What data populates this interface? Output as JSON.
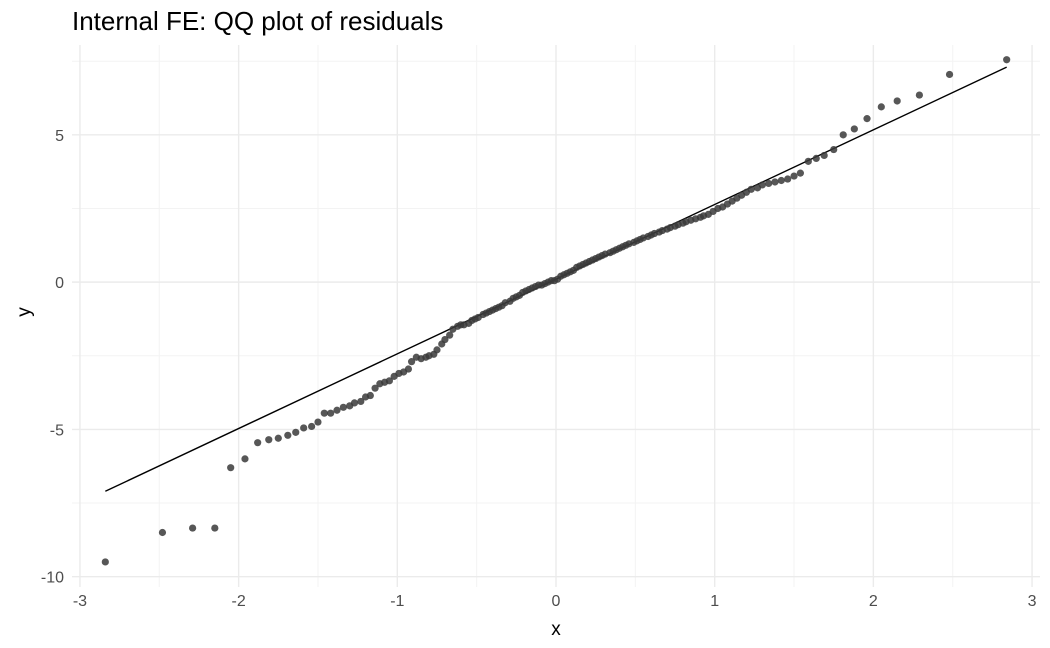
{
  "chart_data": {
    "type": "scatter",
    "title": "Internal FE: QQ plot of residuals",
    "xlabel": "x",
    "ylabel": "y",
    "xlim": [
      -3.05,
      3.05
    ],
    "ylim": [
      -10.35,
      8.05
    ],
    "xticks": [
      -3,
      -2,
      -1,
      0,
      1,
      2,
      3
    ],
    "xtick_labels": [
      "-3",
      "-2",
      "-1",
      "0",
      "1",
      "2",
      "3"
    ],
    "yticks": [
      -10,
      -5,
      0,
      5
    ],
    "ytick_labels": [
      "-10",
      "-5",
      "0",
      "5"
    ],
    "grid": true,
    "legend": "none",
    "colors": {
      "point": "#3a3a3a",
      "line": "#000000",
      "grid_major": "#ebebeb",
      "grid_minor": "#f3f3f3"
    },
    "reference_line": {
      "x": [
        -2.84,
        2.84
      ],
      "y": [
        -7.1,
        7.3
      ]
    },
    "series": [
      {
        "points": [
          [
            -2.84,
            -9.5
          ],
          [
            -2.48,
            -8.5
          ],
          [
            -2.29,
            -8.35
          ],
          [
            -2.15,
            -8.35
          ],
          [
            -2.05,
            -6.3
          ],
          [
            -1.96,
            -6.0
          ],
          [
            -1.88,
            -5.45
          ],
          [
            -1.81,
            -5.35
          ],
          [
            -1.75,
            -5.3
          ],
          [
            -1.69,
            -5.2
          ],
          [
            -1.64,
            -5.1
          ],
          [
            -1.59,
            -4.95
          ],
          [
            -1.54,
            -4.9
          ],
          [
            -1.5,
            -4.75
          ],
          [
            -1.46,
            -4.45
          ],
          [
            -1.42,
            -4.45
          ],
          [
            -1.38,
            -4.35
          ],
          [
            -1.34,
            -4.25
          ],
          [
            -1.3,
            -4.2
          ],
          [
            -1.27,
            -4.1
          ],
          [
            -1.23,
            -4.05
          ],
          [
            -1.2,
            -3.9
          ],
          [
            -1.17,
            -3.85
          ],
          [
            -1.14,
            -3.6
          ],
          [
            -1.11,
            -3.45
          ],
          [
            -1.08,
            -3.4
          ],
          [
            -1.05,
            -3.35
          ],
          [
            -1.02,
            -3.2
          ],
          [
            -0.99,
            -3.1
          ],
          [
            -0.96,
            -3.05
          ],
          [
            -0.93,
            -2.95
          ],
          [
            -0.91,
            -2.7
          ],
          [
            -0.88,
            -2.55
          ],
          [
            -0.85,
            -2.6
          ],
          [
            -0.82,
            -2.55
          ],
          [
            -0.8,
            -2.5
          ],
          [
            -0.77,
            -2.45
          ],
          [
            -0.75,
            -2.3
          ],
          [
            -0.72,
            -2.1
          ],
          [
            -0.7,
            -1.95
          ],
          [
            -0.67,
            -1.8
          ],
          [
            -0.65,
            -1.6
          ],
          [
            -0.62,
            -1.5
          ],
          [
            -0.6,
            -1.45
          ],
          [
            -0.58,
            -1.45
          ],
          [
            -0.55,
            -1.4
          ],
          [
            -0.53,
            -1.3
          ],
          [
            -0.51,
            -1.25
          ],
          [
            -0.49,
            -1.2
          ],
          [
            -0.46,
            -1.1
          ],
          [
            -0.44,
            -1.05
          ],
          [
            -0.42,
            -1.0
          ],
          [
            -0.4,
            -0.95
          ],
          [
            -0.38,
            -0.9
          ],
          [
            -0.36,
            -0.85
          ],
          [
            -0.34,
            -0.8
          ],
          [
            -0.32,
            -0.7
          ],
          [
            -0.29,
            -0.65
          ],
          [
            -0.27,
            -0.55
          ],
          [
            -0.25,
            -0.5
          ],
          [
            -0.23,
            -0.45
          ],
          [
            -0.21,
            -0.35
          ],
          [
            -0.19,
            -0.3
          ],
          [
            -0.17,
            -0.25
          ],
          [
            -0.15,
            -0.2
          ],
          [
            -0.13,
            -0.15
          ],
          [
            -0.11,
            -0.1
          ],
          [
            -0.09,
            -0.1
          ],
          [
            -0.07,
            -0.05
          ],
          [
            -0.05,
            0.0
          ],
          [
            -0.03,
            0.05
          ],
          [
            -0.01,
            0.05
          ],
          [
            0.01,
            0.1
          ],
          [
            0.03,
            0.2
          ],
          [
            0.05,
            0.25
          ],
          [
            0.07,
            0.3
          ],
          [
            0.09,
            0.35
          ],
          [
            0.11,
            0.4
          ],
          [
            0.13,
            0.5
          ],
          [
            0.15,
            0.55
          ],
          [
            0.17,
            0.6
          ],
          [
            0.19,
            0.65
          ],
          [
            0.21,
            0.7
          ],
          [
            0.23,
            0.75
          ],
          [
            0.25,
            0.8
          ],
          [
            0.27,
            0.85
          ],
          [
            0.29,
            0.9
          ],
          [
            0.31,
            0.95
          ],
          [
            0.34,
            1.0
          ],
          [
            0.36,
            1.05
          ],
          [
            0.38,
            1.1
          ],
          [
            0.4,
            1.15
          ],
          [
            0.42,
            1.2
          ],
          [
            0.44,
            1.25
          ],
          [
            0.46,
            1.3
          ],
          [
            0.49,
            1.35
          ],
          [
            0.51,
            1.4
          ],
          [
            0.53,
            1.45
          ],
          [
            0.55,
            1.5
          ],
          [
            0.58,
            1.55
          ],
          [
            0.6,
            1.6
          ],
          [
            0.62,
            1.65
          ],
          [
            0.65,
            1.7
          ],
          [
            0.67,
            1.75
          ],
          [
            0.7,
            1.8
          ],
          [
            0.72,
            1.85
          ],
          [
            0.75,
            1.9
          ],
          [
            0.77,
            1.95
          ],
          [
            0.8,
            2.0
          ],
          [
            0.82,
            2.05
          ],
          [
            0.85,
            2.1
          ],
          [
            0.88,
            2.15
          ],
          [
            0.91,
            2.2
          ],
          [
            0.93,
            2.25
          ],
          [
            0.96,
            2.3
          ],
          [
            0.99,
            2.4
          ],
          [
            1.02,
            2.5
          ],
          [
            1.05,
            2.55
          ],
          [
            1.08,
            2.65
          ],
          [
            1.11,
            2.75
          ],
          [
            1.14,
            2.85
          ],
          [
            1.17,
            2.95
          ],
          [
            1.2,
            3.05
          ],
          [
            1.23,
            3.15
          ],
          [
            1.27,
            3.2
          ],
          [
            1.3,
            3.3
          ],
          [
            1.34,
            3.35
          ],
          [
            1.38,
            3.4
          ],
          [
            1.42,
            3.45
          ],
          [
            1.46,
            3.5
          ],
          [
            1.5,
            3.6
          ],
          [
            1.54,
            3.7
          ],
          [
            1.59,
            4.1
          ],
          [
            1.64,
            4.2
          ],
          [
            1.69,
            4.3
          ],
          [
            1.75,
            4.5
          ],
          [
            1.81,
            5.0
          ],
          [
            1.88,
            5.2
          ],
          [
            1.96,
            5.55
          ],
          [
            2.05,
            5.95
          ],
          [
            2.15,
            6.15
          ],
          [
            2.29,
            6.35
          ],
          [
            2.48,
            7.05
          ],
          [
            2.84,
            7.55
          ]
        ]
      }
    ]
  }
}
